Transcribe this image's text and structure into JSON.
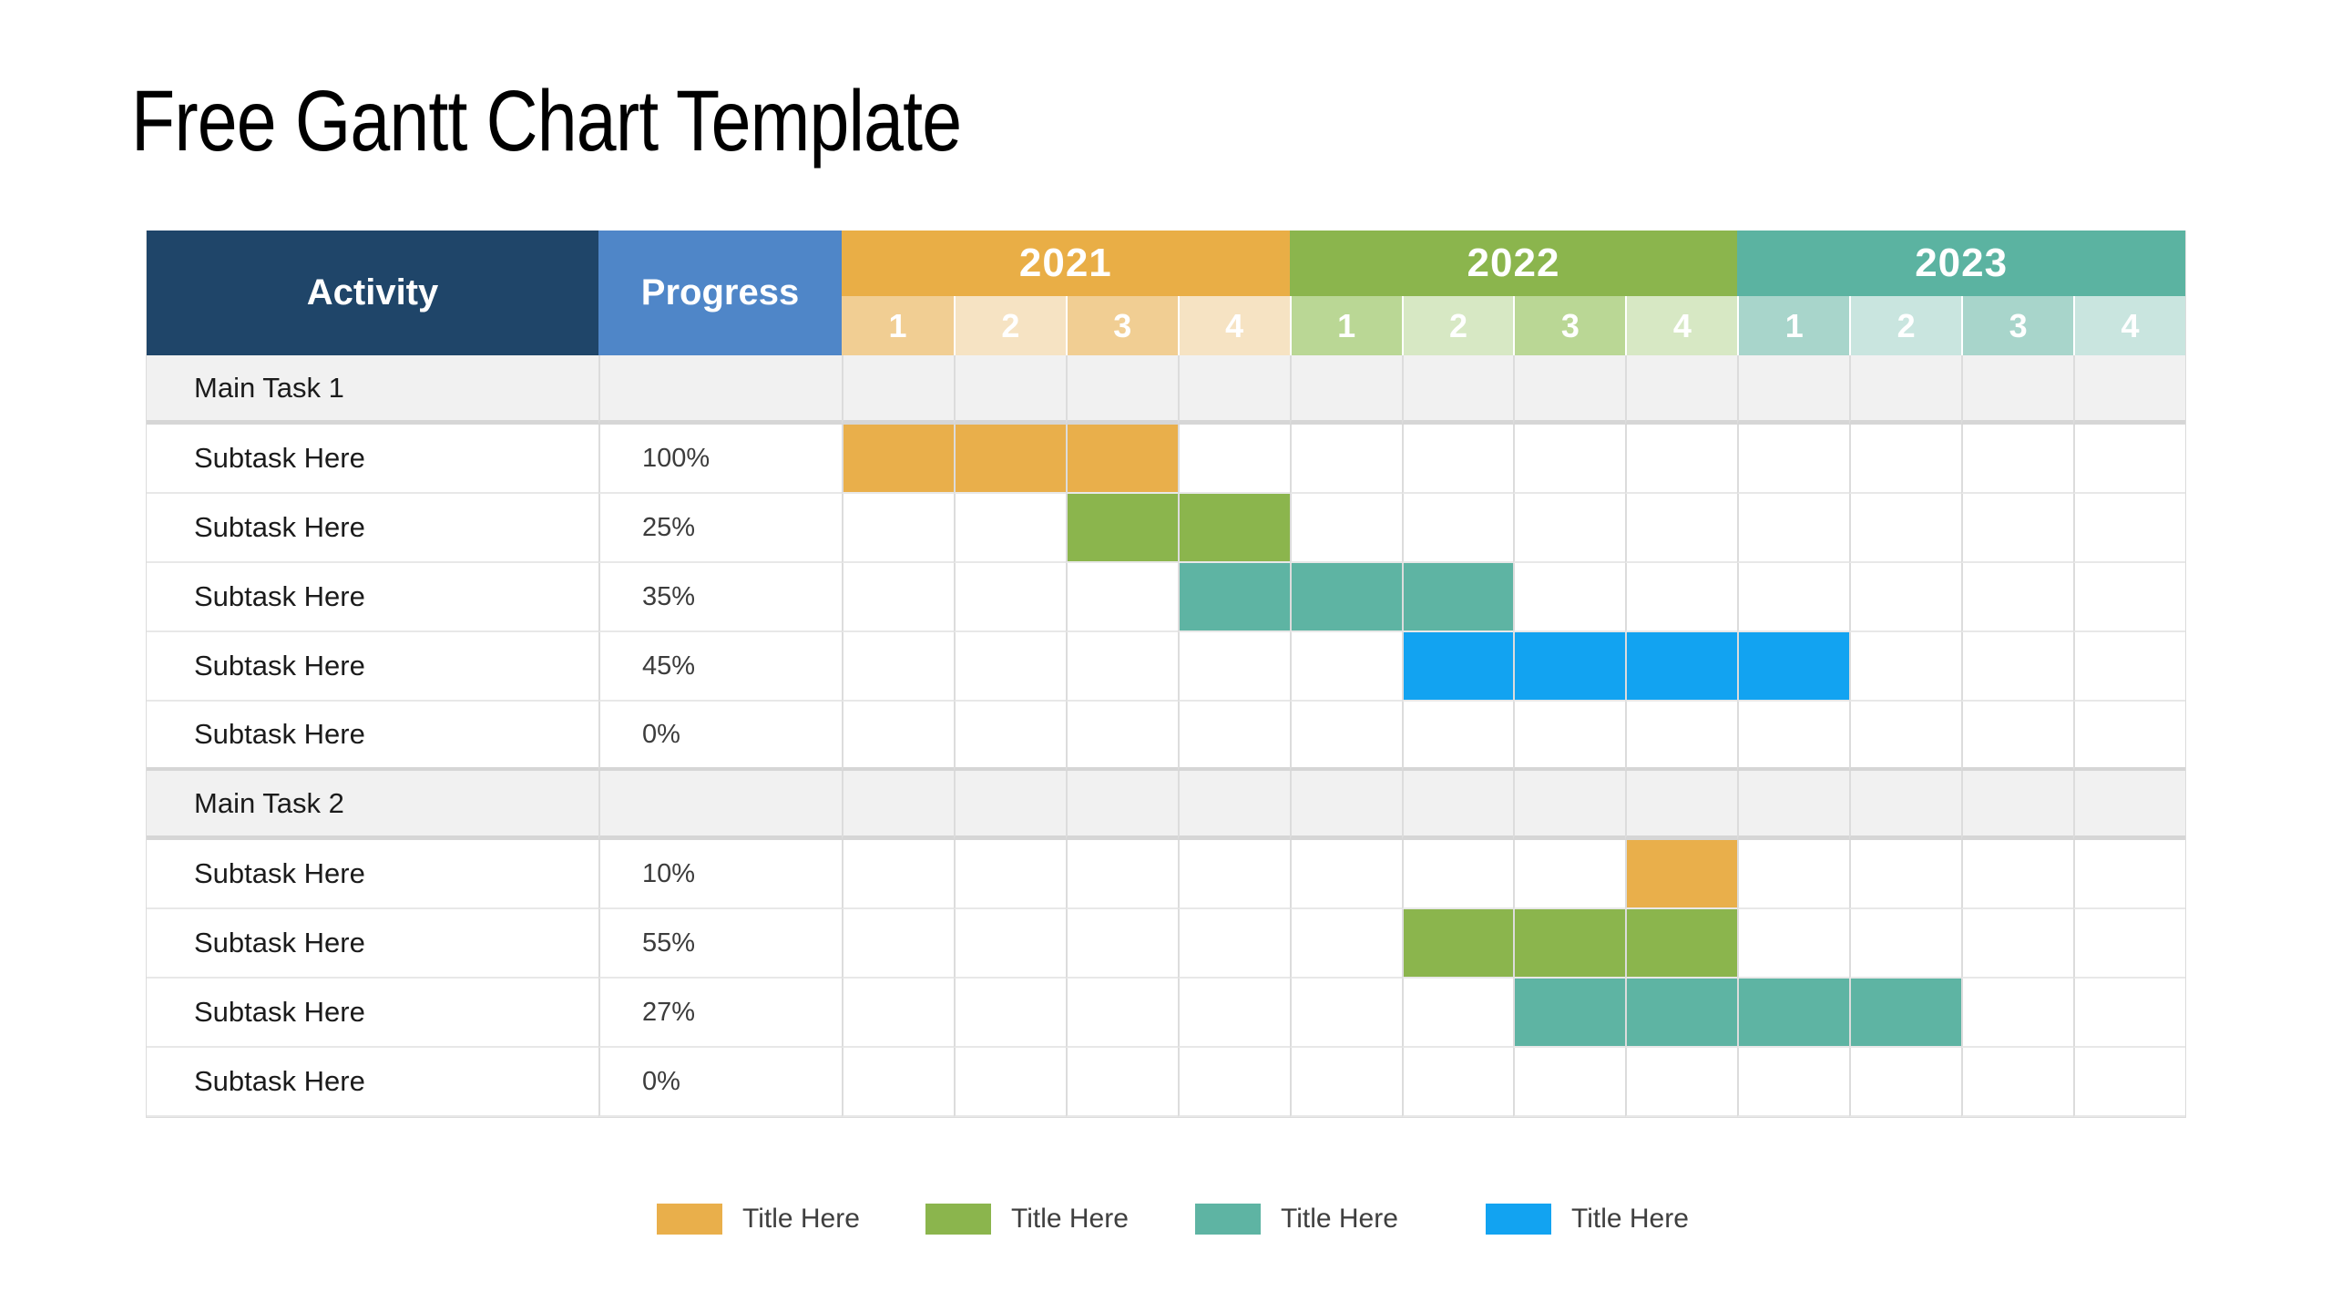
{
  "title": "Free Gantt Chart Template",
  "colors": {
    "navy": "#1F4569",
    "progress_blue": "#4F86C8",
    "main_row_bg": "#F1F1F1",
    "grid_line": "#DCDCDC",
    "heavy_line": "#D6D6D6",
    "text_dark": "#1B1B1B",
    "text_gray": "#3F3F3F",
    "orange": {
      "header": "#E9AE46",
      "medium": "#F1CE93",
      "light": "#F6E3C3",
      "bar": "#E9AF4B"
    },
    "green": {
      "header": "#8BB54D",
      "medium": "#BAD795",
      "light": "#D7E8C4",
      "bar": "#8BB54D"
    },
    "teal": {
      "header": "#5BB3A1",
      "medium": "#A8D5CB",
      "light": "#C9E5DF",
      "bar": "#5EB4A3"
    },
    "blue": {
      "header": "#12A3F1",
      "medium": "#A0D8F8",
      "light": "#C8E8FB",
      "bar": "#12A3F1"
    }
  },
  "table": {
    "headers": {
      "activity": "Activity",
      "progress": "Progress"
    },
    "years": [
      {
        "label": "2021",
        "key": "orange",
        "quarters": [
          "1",
          "2",
          "3",
          "4"
        ]
      },
      {
        "label": "2022",
        "key": "green",
        "quarters": [
          "1",
          "2",
          "3",
          "4"
        ]
      },
      {
        "label": "2023",
        "key": "teal",
        "quarters": [
          "1",
          "2",
          "3",
          "4"
        ]
      }
    ],
    "rows": [
      {
        "type": "main",
        "activity": "Main Task 1",
        "progress": ""
      },
      {
        "type": "sub",
        "activity": "Subtask Here",
        "progress": "100%",
        "bar": {
          "start": 1,
          "span": 3,
          "key": "orange"
        }
      },
      {
        "type": "sub",
        "activity": "Subtask Here",
        "progress": "25%",
        "bar": {
          "start": 3,
          "span": 2,
          "key": "green"
        }
      },
      {
        "type": "sub",
        "activity": "Subtask Here",
        "progress": "35%",
        "bar": {
          "start": 4,
          "span": 3,
          "key": "teal"
        }
      },
      {
        "type": "sub",
        "activity": "Subtask Here",
        "progress": "45%",
        "bar": {
          "start": 6,
          "span": 4,
          "key": "blue"
        }
      },
      {
        "type": "sub",
        "activity": "Subtask Here",
        "progress": "0%"
      },
      {
        "type": "main",
        "activity": "Main Task 2",
        "progress": ""
      },
      {
        "type": "sub",
        "activity": "Subtask Here",
        "progress": "10%",
        "bar": {
          "start": 8,
          "span": 1,
          "key": "orange"
        }
      },
      {
        "type": "sub",
        "activity": "Subtask Here",
        "progress": "55%",
        "bar": {
          "start": 6,
          "span": 3,
          "key": "green"
        }
      },
      {
        "type": "sub",
        "activity": "Subtask Here",
        "progress": "27%",
        "bar": {
          "start": 7,
          "span": 4,
          "key": "teal"
        }
      },
      {
        "type": "sub",
        "activity": "Subtask Here",
        "progress": "0%"
      }
    ]
  },
  "legend": [
    {
      "label": "Title Here",
      "key": "orange"
    },
    {
      "label": "Title Here",
      "key": "green"
    },
    {
      "label": "Title Here",
      "key": "teal"
    },
    {
      "label": "Title Here",
      "key": "blue"
    }
  ],
  "chart_data": {
    "type": "bar",
    "subtype": "gantt",
    "title": "Free Gantt Chart Template",
    "x_axis": {
      "years": [
        "2021",
        "2022",
        "2023"
      ],
      "quarters_per_year": 4,
      "tick_labels": [
        "1",
        "2",
        "3",
        "4"
      ]
    },
    "columns": [
      "Activity",
      "Progress",
      "2021 Q1-Q4",
      "2022 Q1-Q4",
      "2023 Q1-Q4"
    ],
    "tasks": [
      {
        "name": "Main Task 1",
        "progress": null,
        "start": null,
        "end": null,
        "color": null
      },
      {
        "name": "Subtask Here",
        "progress": "100%",
        "start": "2021-Q1",
        "end": "2021-Q3",
        "color": "#E9AF4B"
      },
      {
        "name": "Subtask Here",
        "progress": "25%",
        "start": "2021-Q3",
        "end": "2021-Q4",
        "color": "#8BB54D"
      },
      {
        "name": "Subtask Here",
        "progress": "35%",
        "start": "2021-Q4",
        "end": "2022-Q2",
        "color": "#5EB4A3"
      },
      {
        "name": "Subtask Here",
        "progress": "45%",
        "start": "2022-Q2",
        "end": "2023-Q1",
        "color": "#12A3F1"
      },
      {
        "name": "Subtask Here",
        "progress": "0%",
        "start": null,
        "end": null,
        "color": null
      },
      {
        "name": "Main Task 2",
        "progress": null,
        "start": null,
        "end": null,
        "color": null
      },
      {
        "name": "Subtask Here",
        "progress": "10%",
        "start": "2022-Q4",
        "end": "2022-Q4",
        "color": "#E9AF4B"
      },
      {
        "name": "Subtask Here",
        "progress": "55%",
        "start": "2022-Q2",
        "end": "2022-Q4",
        "color": "#8BB54D"
      },
      {
        "name": "Subtask Here",
        "progress": "27%",
        "start": "2022-Q3",
        "end": "2023-Q2",
        "color": "#5EB4A3"
      },
      {
        "name": "Subtask Here",
        "progress": "0%",
        "start": null,
        "end": null,
        "color": null
      }
    ],
    "legend": [
      "Title Here",
      "Title Here",
      "Title Here",
      "Title Here"
    ],
    "legend_position": "bottom",
    "grid": true
  }
}
